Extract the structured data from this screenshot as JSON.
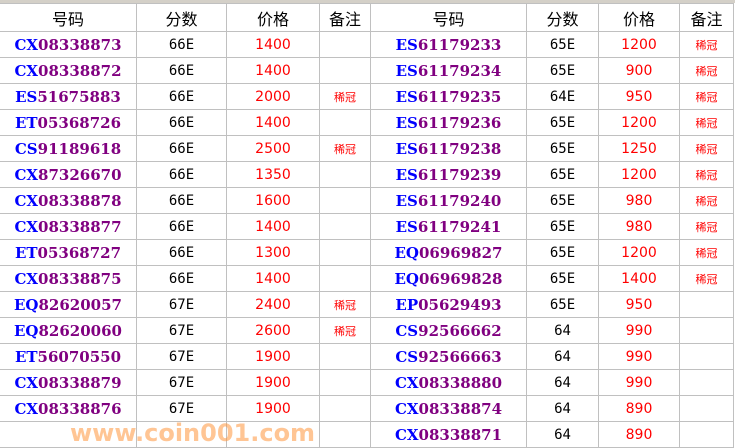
{
  "headers": {
    "code": "号码",
    "score": "分数",
    "price": "价格",
    "note": "备注"
  },
  "watermark": "www.coin001.com",
  "left": [
    {
      "pre": "CX",
      "num": "08338873",
      "score": "66E",
      "price": "1400",
      "note": ""
    },
    {
      "pre": "CX",
      "num": "08338872",
      "score": "66E",
      "price": "1400",
      "note": ""
    },
    {
      "pre": "ES",
      "num": "51675883",
      "score": "66E",
      "price": "2000",
      "note": "稀冠"
    },
    {
      "pre": "ET",
      "num": "05368726",
      "score": "66E",
      "price": "1400",
      "note": ""
    },
    {
      "pre": "CS",
      "num": "91189618",
      "score": "66E",
      "price": "2500",
      "note": "稀冠"
    },
    {
      "pre": "CX",
      "num": "87326670",
      "score": "66E",
      "price": "1350",
      "note": ""
    },
    {
      "pre": "CX",
      "num": "08338878",
      "score": "66E",
      "price": "1600",
      "note": ""
    },
    {
      "pre": "CX",
      "num": "08338877",
      "score": "66E",
      "price": "1400",
      "note": ""
    },
    {
      "pre": "ET",
      "num": "05368727",
      "score": "66E",
      "price": "1300",
      "note": ""
    },
    {
      "pre": "CX",
      "num": "08338875",
      "score": "66E",
      "price": "1400",
      "note": ""
    },
    {
      "pre": "EQ",
      "num": "82620057",
      "score": "67E",
      "price": "2400",
      "note": "稀冠"
    },
    {
      "pre": "EQ",
      "num": "82620060",
      "score": "67E",
      "price": "2600",
      "note": "稀冠"
    },
    {
      "pre": "ET",
      "num": "56070550",
      "score": "67E",
      "price": "1900",
      "note": ""
    },
    {
      "pre": "CX",
      "num": "08338879",
      "score": "67E",
      "price": "1900",
      "note": ""
    },
    {
      "pre": "CX",
      "num": "08338876",
      "score": "67E",
      "price": "1900",
      "note": ""
    },
    {
      "pre": "",
      "num": "",
      "score": "",
      "price": "",
      "note": ""
    }
  ],
  "right": [
    {
      "pre": "ES",
      "num": "61179233",
      "score": "65E",
      "price": "1200",
      "note": "稀冠"
    },
    {
      "pre": "ES",
      "num": "61179234",
      "score": "65E",
      "price": "900",
      "note": "稀冠"
    },
    {
      "pre": "ES",
      "num": "61179235",
      "score": "64E",
      "price": "950",
      "note": "稀冠"
    },
    {
      "pre": "ES",
      "num": "61179236",
      "score": "65E",
      "price": "1200",
      "note": "稀冠"
    },
    {
      "pre": "ES",
      "num": "61179238",
      "score": "65E",
      "price": "1250",
      "note": "稀冠"
    },
    {
      "pre": "ES",
      "num": "61179239",
      "score": "65E",
      "price": "1200",
      "note": "稀冠"
    },
    {
      "pre": "ES",
      "num": "61179240",
      "score": "65E",
      "price": "980",
      "note": "稀冠"
    },
    {
      "pre": "ES",
      "num": "61179241",
      "score": "65E",
      "price": "980",
      "note": "稀冠"
    },
    {
      "pre": "EQ",
      "num": "06969827",
      "score": "65E",
      "price": "1200",
      "note": "稀冠"
    },
    {
      "pre": "EQ",
      "num": "06969828",
      "score": "65E",
      "price": "1400",
      "note": "稀冠"
    },
    {
      "pre": "EP",
      "num": "05629493",
      "score": "65E",
      "price": "950",
      "note": ""
    },
    {
      "pre": "CS",
      "num": "92566662",
      "score": "64",
      "price": "990",
      "note": ""
    },
    {
      "pre": "CS",
      "num": "92566663",
      "score": "64",
      "price": "990",
      "note": ""
    },
    {
      "pre": "CX",
      "num": "08338880",
      "score": "64",
      "price": "990",
      "note": ""
    },
    {
      "pre": "CX",
      "num": "08338874",
      "score": "64",
      "price": "890",
      "note": ""
    },
    {
      "pre": "CX",
      "num": "08338871",
      "score": "64",
      "price": "890",
      "note": ""
    }
  ]
}
